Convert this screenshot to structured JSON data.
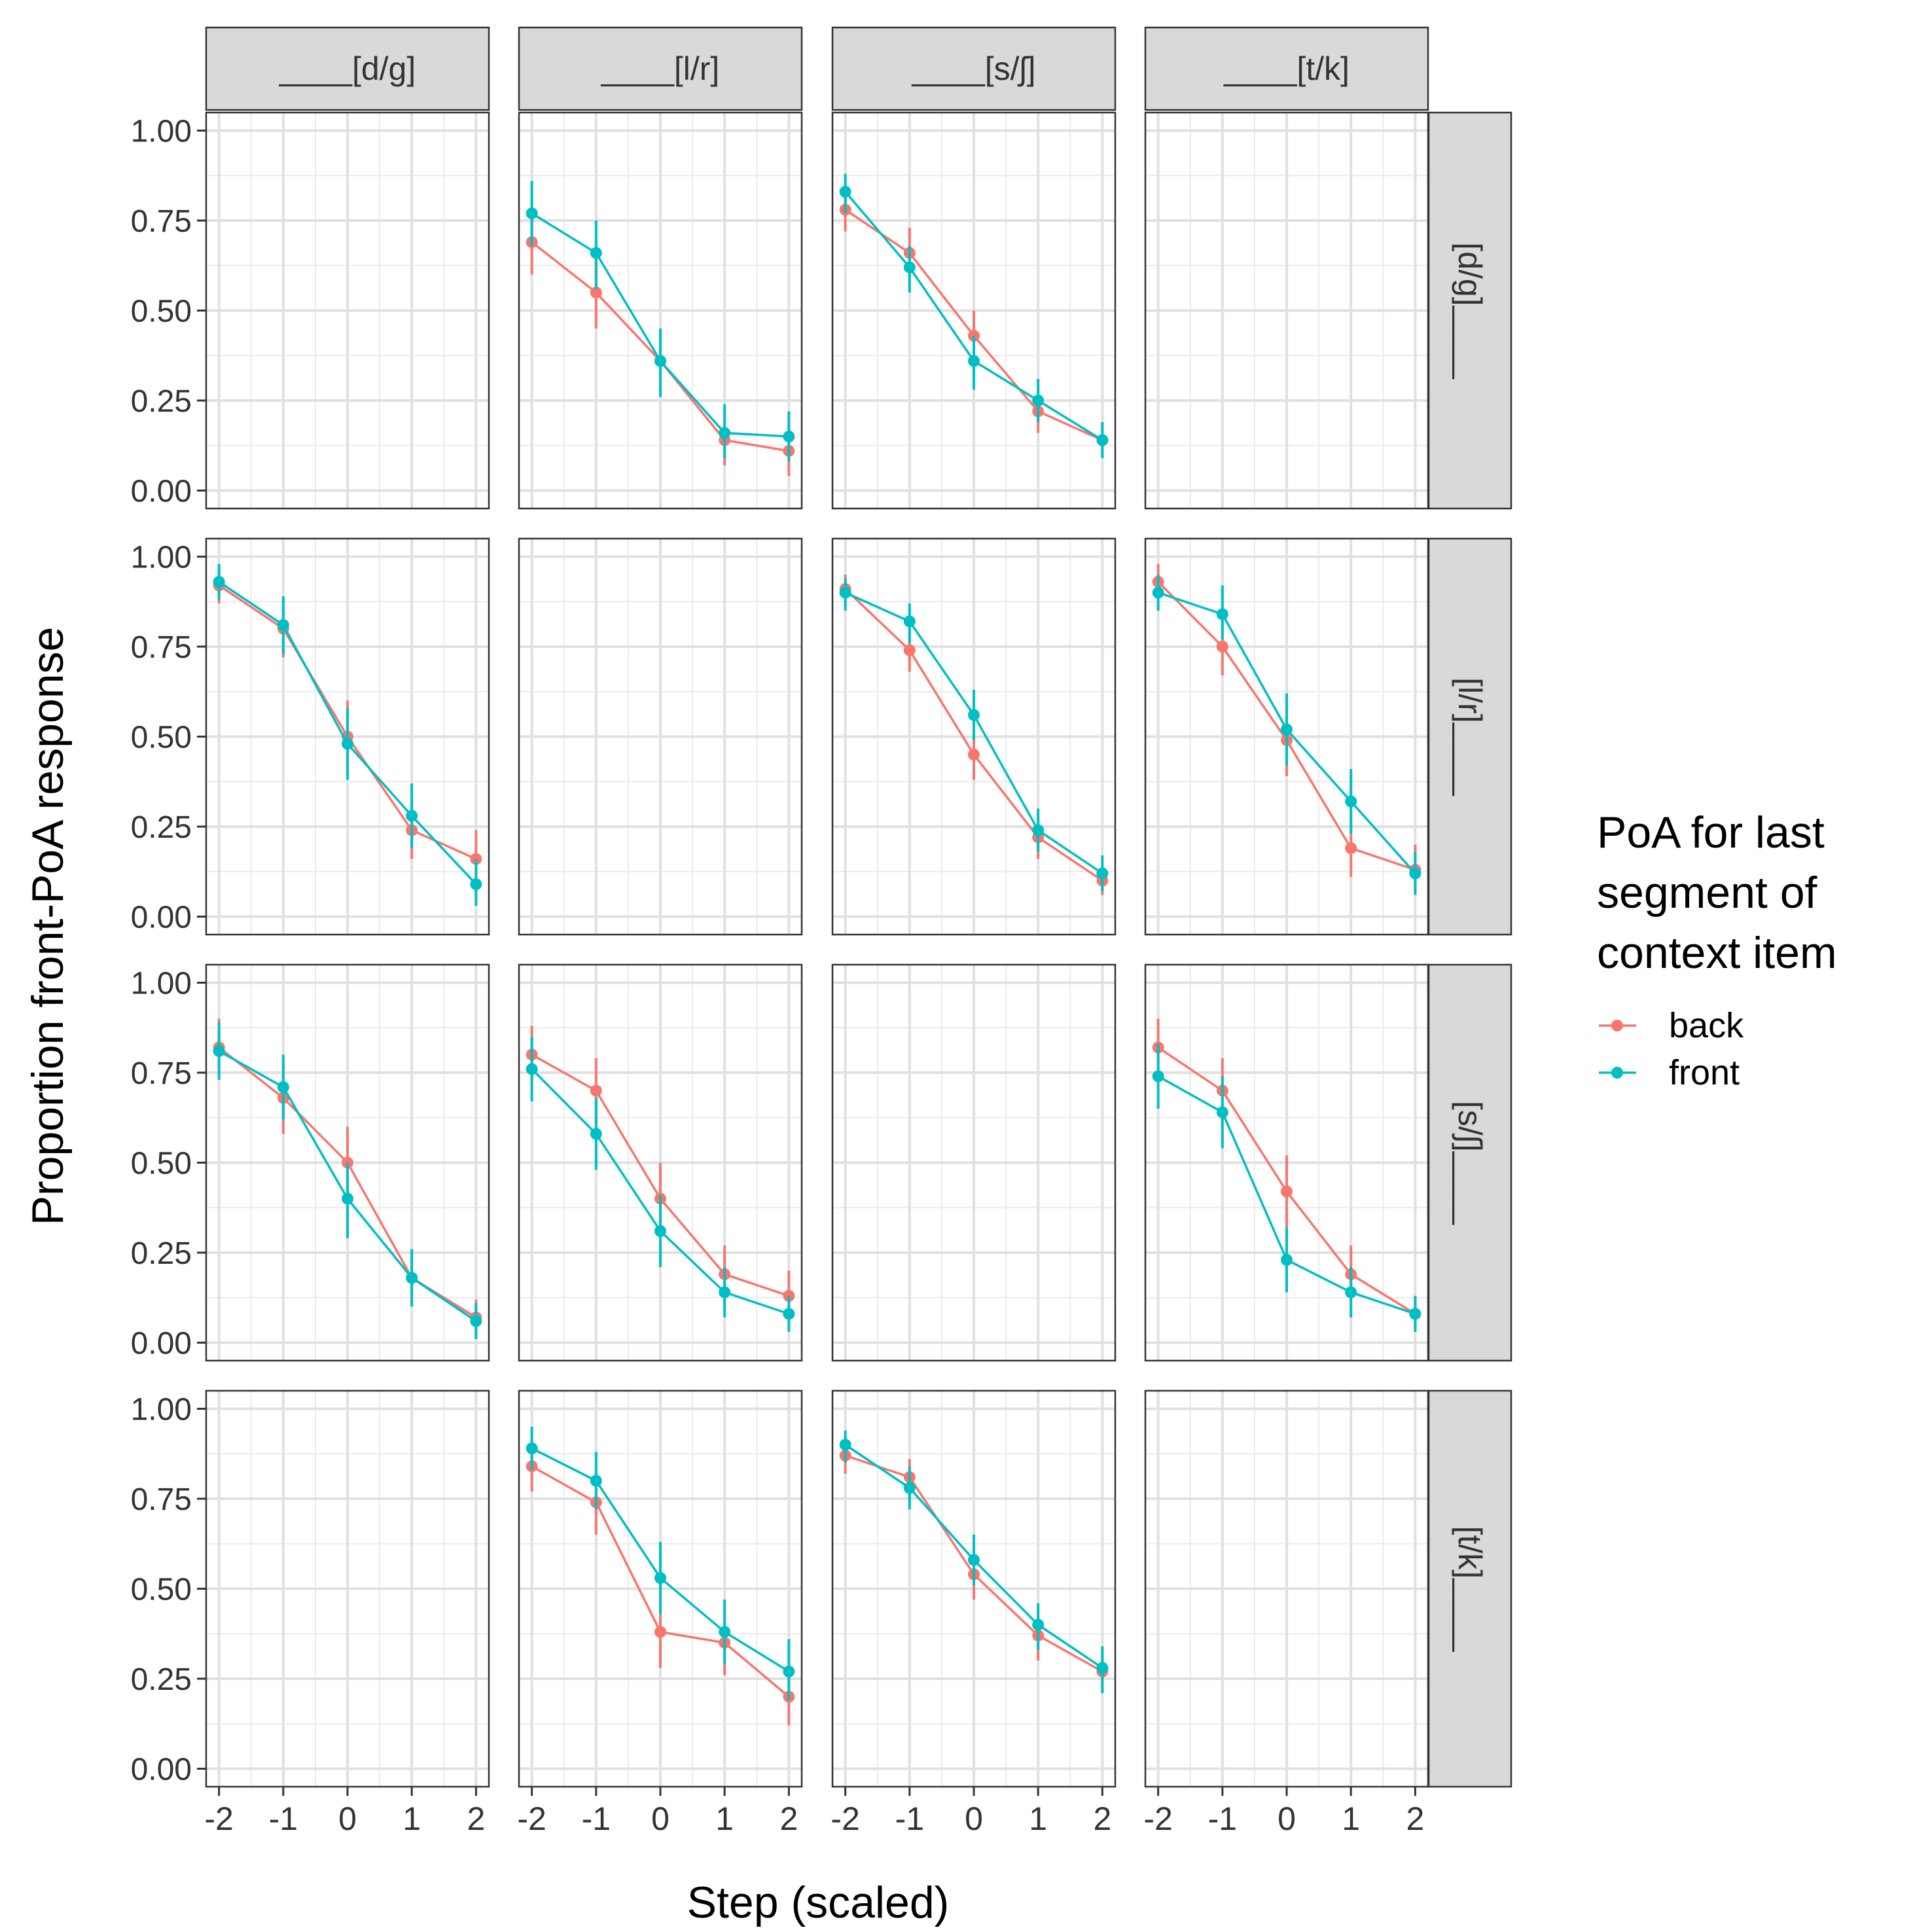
{
  "chart_data": {
    "type": "line",
    "xlabel": "Step (scaled)",
    "ylabel": "Proportion front-PoA response",
    "x": [
      -2,
      -1,
      0,
      1,
      2
    ],
    "x_tick_labels": [
      "-2",
      "-1",
      "0",
      "1",
      "2"
    ],
    "y_ticks": [
      0,
      0.25,
      0.5,
      0.75,
      1
    ],
    "y_tick_labels": [
      "0.00",
      "0.25",
      "0.50",
      "0.75",
      "1.00"
    ],
    "xlim": [
      -2.2,
      2.2
    ],
    "ylim": [
      -0.05,
      1.05
    ],
    "col_facets": [
      "____[d/g]",
      "____[l/r]",
      "____[s/ʃ]",
      "____[t/k]"
    ],
    "row_facets": [
      "[d/g]____",
      "[l/r]____",
      "[s/ʃ]____",
      "[t/k]____"
    ],
    "legend": {
      "title_lines": [
        "PoA for last",
        "segment of",
        "context item"
      ],
      "entries": [
        {
          "name": "back",
          "color": "#F8766D"
        },
        {
          "name": "front",
          "color": "#00BFC4"
        }
      ]
    },
    "panels": [
      {
        "row": 0,
        "col": 0,
        "series": []
      },
      {
        "row": 0,
        "col": 1,
        "series": [
          {
            "name": "back",
            "values": [
              0.69,
              0.55,
              0.36,
              0.14,
              0.11
            ],
            "lower": [
              0.6,
              0.45,
              0.26,
              0.07,
              0.04
            ],
            "upper": [
              0.78,
              0.64,
              0.45,
              0.21,
              0.18
            ]
          },
          {
            "name": "front",
            "values": [
              0.77,
              0.66,
              0.36,
              0.16,
              0.15
            ],
            "lower": [
              0.68,
              0.56,
              0.26,
              0.09,
              0.08
            ],
            "upper": [
              0.86,
              0.75,
              0.45,
              0.24,
              0.22
            ]
          }
        ]
      },
      {
        "row": 0,
        "col": 2,
        "series": [
          {
            "name": "back",
            "values": [
              0.78,
              0.66,
              0.43,
              0.22,
              0.14
            ],
            "lower": [
              0.72,
              0.59,
              0.36,
              0.16,
              0.09
            ],
            "upper": [
              0.84,
              0.73,
              0.5,
              0.28,
              0.19
            ]
          },
          {
            "name": "front",
            "values": [
              0.83,
              0.62,
              0.36,
              0.25,
              0.14
            ],
            "lower": [
              0.77,
              0.55,
              0.28,
              0.19,
              0.09
            ],
            "upper": [
              0.88,
              0.68,
              0.43,
              0.31,
              0.19
            ]
          }
        ]
      },
      {
        "row": 0,
        "col": 3,
        "series": []
      },
      {
        "row": 1,
        "col": 0,
        "series": [
          {
            "name": "back",
            "values": [
              0.92,
              0.8,
              0.5,
              0.24,
              0.16
            ],
            "lower": [
              0.87,
              0.72,
              0.4,
              0.16,
              0.09
            ],
            "upper": [
              0.97,
              0.88,
              0.6,
              0.33,
              0.24
            ]
          },
          {
            "name": "front",
            "values": [
              0.93,
              0.81,
              0.48,
              0.28,
              0.09
            ],
            "lower": [
              0.88,
              0.73,
              0.38,
              0.19,
              0.03
            ],
            "upper": [
              0.98,
              0.89,
              0.58,
              0.37,
              0.16
            ]
          }
        ]
      },
      {
        "row": 1,
        "col": 1,
        "series": []
      },
      {
        "row": 1,
        "col": 2,
        "series": [
          {
            "name": "back",
            "values": [
              0.91,
              0.74,
              0.45,
              0.22,
              0.1
            ],
            "lower": [
              0.87,
              0.68,
              0.38,
              0.16,
              0.06
            ],
            "upper": [
              0.95,
              0.8,
              0.52,
              0.28,
              0.14
            ]
          },
          {
            "name": "front",
            "values": [
              0.9,
              0.82,
              0.56,
              0.24,
              0.12
            ],
            "lower": [
              0.85,
              0.76,
              0.49,
              0.18,
              0.07
            ],
            "upper": [
              0.94,
              0.87,
              0.63,
              0.3,
              0.17
            ]
          }
        ]
      },
      {
        "row": 1,
        "col": 3,
        "series": [
          {
            "name": "back",
            "values": [
              0.93,
              0.75,
              0.49,
              0.19,
              0.13
            ],
            "lower": [
              0.88,
              0.67,
              0.39,
              0.11,
              0.07
            ],
            "upper": [
              0.98,
              0.83,
              0.59,
              0.27,
              0.2
            ]
          },
          {
            "name": "front",
            "values": [
              0.9,
              0.84,
              0.52,
              0.32,
              0.12
            ],
            "lower": [
              0.85,
              0.77,
              0.42,
              0.23,
              0.06
            ],
            "upper": [
              0.95,
              0.92,
              0.62,
              0.41,
              0.18
            ]
          }
        ]
      },
      {
        "row": 2,
        "col": 0,
        "series": [
          {
            "name": "back",
            "values": [
              0.82,
              0.68,
              0.5,
              0.18,
              0.07
            ],
            "lower": [
              0.74,
              0.58,
              0.4,
              0.1,
              0.02
            ],
            "upper": [
              0.9,
              0.78,
              0.6,
              0.26,
              0.12
            ]
          },
          {
            "name": "front",
            "values": [
              0.81,
              0.71,
              0.4,
              0.18,
              0.06
            ],
            "lower": [
              0.73,
              0.62,
              0.29,
              0.1,
              0.01
            ],
            "upper": [
              0.89,
              0.8,
              0.5,
              0.26,
              0.11
            ]
          }
        ]
      },
      {
        "row": 2,
        "col": 1,
        "series": [
          {
            "name": "back",
            "values": [
              0.8,
              0.7,
              0.4,
              0.19,
              0.13
            ],
            "lower": [
              0.72,
              0.61,
              0.3,
              0.11,
              0.06
            ],
            "upper": [
              0.88,
              0.79,
              0.5,
              0.27,
              0.2
            ]
          },
          {
            "name": "front",
            "values": [
              0.76,
              0.58,
              0.31,
              0.14,
              0.08
            ],
            "lower": [
              0.67,
              0.48,
              0.21,
              0.07,
              0.03
            ],
            "upper": [
              0.85,
              0.68,
              0.41,
              0.21,
              0.13
            ]
          }
        ]
      },
      {
        "row": 2,
        "col": 2,
        "series": []
      },
      {
        "row": 2,
        "col": 3,
        "series": [
          {
            "name": "back",
            "values": [
              0.82,
              0.7,
              0.42,
              0.19,
              0.08
            ],
            "lower": [
              0.74,
              0.61,
              0.32,
              0.11,
              0.03
            ],
            "upper": [
              0.9,
              0.79,
              0.52,
              0.27,
              0.13
            ]
          },
          {
            "name": "front",
            "values": [
              0.74,
              0.64,
              0.23,
              0.14,
              0.08
            ],
            "lower": [
              0.65,
              0.54,
              0.14,
              0.07,
              0.03
            ],
            "upper": [
              0.83,
              0.74,
              0.32,
              0.21,
              0.13
            ]
          }
        ]
      },
      {
        "row": 3,
        "col": 0,
        "series": []
      },
      {
        "row": 3,
        "col": 1,
        "series": [
          {
            "name": "back",
            "values": [
              0.84,
              0.74,
              0.38,
              0.35,
              0.2
            ],
            "lower": [
              0.77,
              0.65,
              0.28,
              0.26,
              0.12
            ],
            "upper": [
              0.91,
              0.83,
              0.48,
              0.44,
              0.28
            ]
          },
          {
            "name": "front",
            "values": [
              0.89,
              0.8,
              0.53,
              0.38,
              0.27
            ],
            "lower": [
              0.83,
              0.72,
              0.43,
              0.29,
              0.19
            ],
            "upper": [
              0.95,
              0.88,
              0.63,
              0.47,
              0.36
            ]
          }
        ]
      },
      {
        "row": 3,
        "col": 2,
        "series": [
          {
            "name": "back",
            "values": [
              0.87,
              0.81,
              0.54,
              0.37,
              0.27
            ],
            "lower": [
              0.82,
              0.75,
              0.47,
              0.3,
              0.21
            ],
            "upper": [
              0.92,
              0.86,
              0.61,
              0.43,
              0.33
            ]
          },
          {
            "name": "front",
            "values": [
              0.9,
              0.78,
              0.58,
              0.4,
              0.28
            ],
            "lower": [
              0.85,
              0.72,
              0.51,
              0.33,
              0.21
            ],
            "upper": [
              0.94,
              0.84,
              0.65,
              0.46,
              0.34
            ]
          }
        ]
      },
      {
        "row": 3,
        "col": 3,
        "series": []
      }
    ]
  }
}
